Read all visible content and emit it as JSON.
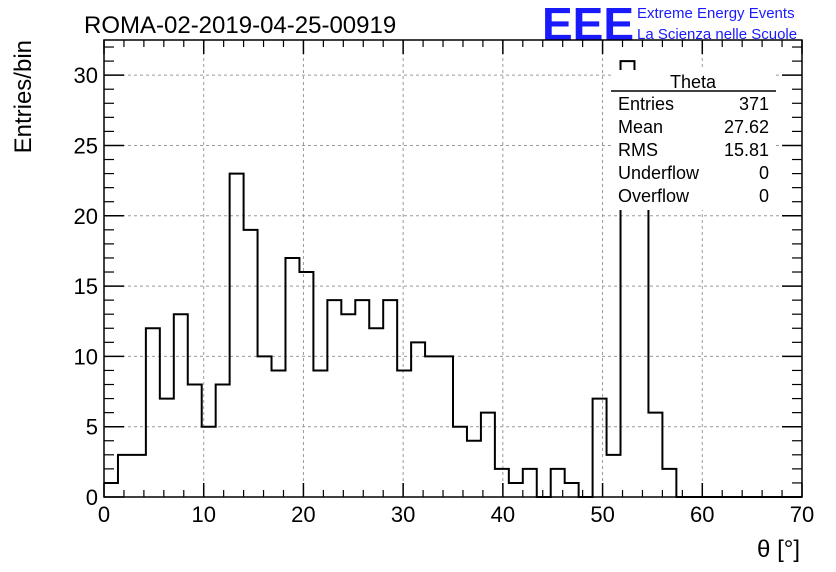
{
  "chart_data": {
    "type": "histogram",
    "title": "ROMA-02-2019-04-25-00919",
    "xlabel": "θ [°]",
    "ylabel": "Entries/bin",
    "xlim": [
      0,
      70
    ],
    "ylim": [
      0,
      32.5
    ],
    "grid": true,
    "bin_width": 1.4,
    "x_ticks": [
      "0",
      "10",
      "20",
      "30",
      "40",
      "50",
      "60",
      "70"
    ],
    "y_ticks": [
      "0",
      "5",
      "10",
      "15",
      "20",
      "25",
      "30"
    ],
    "series": [
      {
        "values": [
          1,
          3,
          3,
          12,
          7,
          13,
          8,
          5,
          8,
          23,
          19,
          10,
          9,
          17,
          16,
          9,
          14,
          13,
          14,
          12,
          14,
          9,
          11,
          10,
          10,
          5,
          4,
          6,
          2,
          1,
          2,
          0,
          2,
          1,
          0,
          7,
          3,
          31,
          29,
          6,
          2,
          0,
          0,
          0,
          0,
          0,
          0,
          0,
          0,
          0
        ]
      }
    ],
    "stats": {
      "header": "Theta",
      "rows": [
        {
          "label": "Entries",
          "value": "371"
        },
        {
          "label": "Mean",
          "value": "27.62"
        },
        {
          "label": "RMS",
          "value": "15.81"
        },
        {
          "label": "Underflow",
          "value": "0"
        },
        {
          "label": "Overflow",
          "value": "0"
        }
      ]
    },
    "logo": {
      "text": "EEE",
      "line1": "Extreme Energy Events",
      "line2": "La Scienza nelle Scuole",
      "color": "#1a1aff"
    },
    "colors": {
      "line": "#000000",
      "grid": "#9a9a9a"
    }
  }
}
